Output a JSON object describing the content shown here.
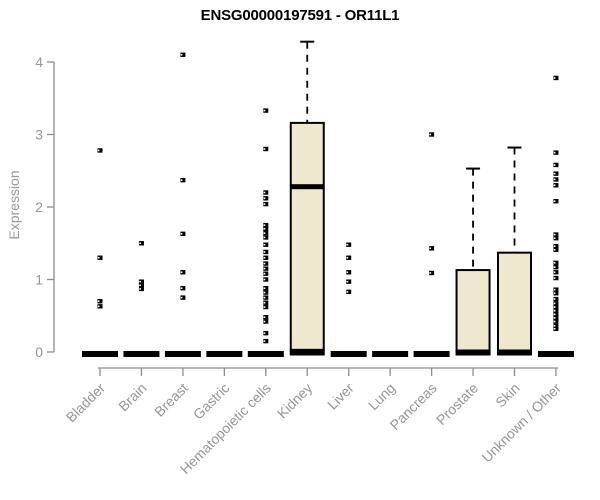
{
  "chart_data": {
    "type": "box",
    "title": "ENSG00000197591 - OR11L1",
    "ylabel": "Expression",
    "xlabel": "",
    "ylim": [
      0,
      4.35
    ],
    "yticks": [
      "0",
      "1",
      "2",
      "3",
      "4"
    ],
    "grid": false,
    "legend": "none",
    "colors": {
      "background": "#ffffff",
      "box_fill": "#ede8ce",
      "box_stroke": "#000000",
      "median": "#000000",
      "outlier": "#000000",
      "axis": "#8c8c8c",
      "tick_text": "#969696",
      "title_text": "#000000"
    },
    "categories": [
      "Bladder",
      "Brain",
      "Breast",
      "Gastric",
      "Hematopoietic cells",
      "Kidney",
      "Liver",
      "Lung",
      "Pancreas",
      "Prostate",
      "Skin",
      "Unknown / Other"
    ],
    "boxes": [
      {
        "category": "Bladder",
        "q1": 0,
        "median": 0,
        "q3": 0,
        "whisker_low": 0,
        "whisker_high": 0,
        "outliers": [
          2.78,
          1.3,
          0.7,
          0.63
        ]
      },
      {
        "category": "Brain",
        "q1": 0,
        "median": 0,
        "q3": 0,
        "whisker_low": 0,
        "whisker_high": 0,
        "outliers": [
          1.5,
          0.97,
          0.92,
          0.87
        ]
      },
      {
        "category": "Breast",
        "q1": 0,
        "median": 0,
        "q3": 0,
        "whisker_low": 0,
        "whisker_high": 0,
        "outliers": [
          4.1,
          2.37,
          1.63,
          1.1,
          0.88,
          0.75
        ]
      },
      {
        "category": "Gastric",
        "q1": 0,
        "median": 0,
        "q3": 0,
        "whisker_low": 0,
        "whisker_high": 0,
        "outliers": []
      },
      {
        "category": "Hematopoietic cells",
        "q1": 0,
        "median": 0,
        "q3": 0,
        "whisker_low": 0,
        "whisker_high": 0,
        "outliers": [
          3.33,
          2.8,
          2.2,
          2.12,
          2.04,
          1.75,
          1.7,
          1.64,
          1.58,
          1.48,
          1.38,
          1.3,
          1.22,
          1.15,
          1.08,
          1.0,
          0.88,
          0.82,
          0.75,
          0.68,
          0.62,
          0.48,
          0.42,
          0.26,
          0.15
        ]
      },
      {
        "category": "Kidney",
        "q1": 0.03,
        "median": 2.28,
        "q3": 3.16,
        "whisker_low": 0,
        "whisker_high": 4.28,
        "outliers": []
      },
      {
        "category": "Liver",
        "q1": 0,
        "median": 0,
        "q3": 0,
        "whisker_low": 0,
        "whisker_high": 0,
        "outliers": [
          1.48,
          1.3,
          1.1,
          0.97,
          0.83
        ]
      },
      {
        "category": "Lung",
        "q1": 0,
        "median": 0,
        "q3": 0,
        "whisker_low": 0,
        "whisker_high": 0,
        "outliers": []
      },
      {
        "category": "Pancreas",
        "q1": 0,
        "median": 0,
        "q3": 0,
        "whisker_low": 0,
        "whisker_high": 0,
        "outliers": [
          3.0,
          1.43,
          1.09
        ]
      },
      {
        "category": "Prostate",
        "q1": 0,
        "median": 0,
        "q3": 1.13,
        "whisker_low": 0,
        "whisker_high": 2.53,
        "outliers": []
      },
      {
        "category": "Skin",
        "q1": 0,
        "median": 0,
        "q3": 1.37,
        "whisker_low": 0,
        "whisker_high": 2.82,
        "outliers": []
      },
      {
        "category": "Unknown / Other",
        "q1": 0,
        "median": 0,
        "q3": 0,
        "whisker_low": 0,
        "whisker_high": 0,
        "outliers": [
          3.78,
          2.75,
          2.58,
          2.46,
          2.38,
          2.3,
          2.08,
          1.62,
          1.57,
          1.46,
          1.41,
          1.23,
          1.17,
          1.1,
          1.02,
          0.86,
          0.81,
          0.73,
          0.67,
          0.62,
          0.57,
          0.52,
          0.47,
          0.42,
          0.36,
          0.32
        ]
      }
    ]
  }
}
